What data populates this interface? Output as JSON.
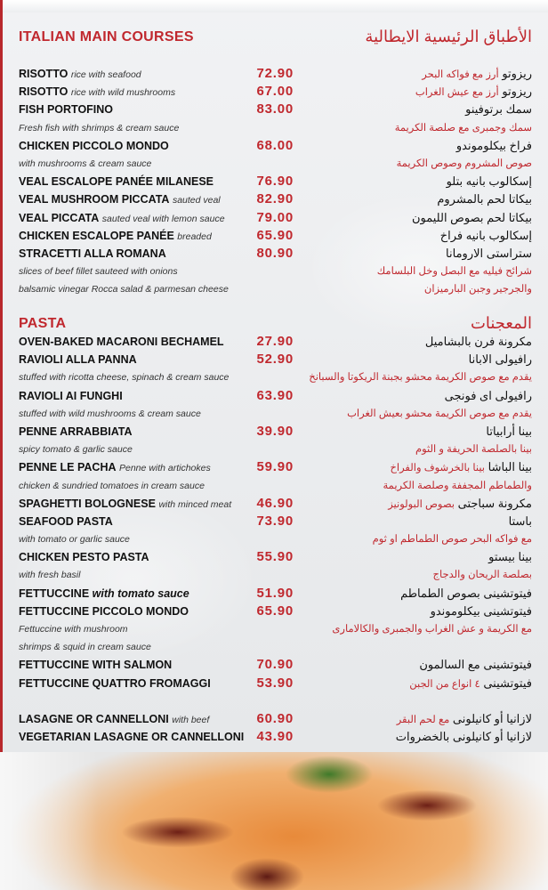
{
  "colors": {
    "accent": "#c0282e",
    "text": "#111111",
    "background": "#eceef0"
  },
  "sections": [
    {
      "title_en": "ITALIAN MAIN COURSES",
      "title_ar": "الأطباق الرئيسية الايطالية",
      "lines": [
        {
          "name": "RISOTTO",
          "desc": "rice with seafood",
          "price": "72.90",
          "ar": "ريزوتو",
          "ar_extra": "أرز مع فواكه البحر"
        },
        {
          "name": "RISOTTO",
          "desc": "rice with wild mushrooms",
          "price": "67.00",
          "ar": "ريزوتو",
          "ar_extra": "أرز مع عيش الغراب"
        },
        {
          "name": "FISH PORTOFINO",
          "price": "83.00",
          "ar": "سمك برتوفينو"
        },
        {
          "note": "Fresh fish with shrimps & cream sauce",
          "ar_note": "سمك وجمبرى مع صلصة الكريمة"
        },
        {
          "name": "CHICKEN PICCOLO MONDO",
          "price": "68.00",
          "ar": "فراخ بيكلوموندو"
        },
        {
          "note": "with mushrooms & cream sauce",
          "ar_note": "صوص المشروم وصوص الكريمة"
        },
        {
          "name": "VEAL ESCALOPE PANÉE MILANESE",
          "price": "76.90",
          "ar": "إسكالوب بانيه بتلو"
        },
        {
          "name": "VEAL MUSHROOM PICCATA",
          "desc": "sauted veal",
          "price": "82.90",
          "ar": "بيكاتا لحم بالمشروم"
        },
        {
          "name": "VEAL PICCATA",
          "desc": "sauted veal with lemon sauce",
          "price": "79.00",
          "ar": "بيكاتا لحم بصوص الليمون"
        },
        {
          "name": "CHICKEN ESCALOPE PANÉE",
          "desc": "breaded",
          "price": "65.90",
          "ar": "إسكالوب بانيه فراخ"
        },
        {
          "name": "STRACETTI ALLA ROMANA",
          "price": "80.90",
          "ar": "ستراستى الارومانا"
        },
        {
          "note": "slices of beef fillet sauteed with onions",
          "ar_note": "شرائح فيليه مع البصل وخل البلسامك"
        },
        {
          "note": "balsamic vinegar Rocca salad & parmesan cheese",
          "ar_note": "والجرجير وجبن البارميزان"
        }
      ]
    },
    {
      "title_en": "PASTA",
      "title_ar": "المعجنات",
      "lines": [
        {
          "name": "OVEN-BAKED MACARONI BECHAMEL",
          "price": "27.90",
          "ar": "مكرونة فرن بالبشاميل"
        },
        {
          "name": "RAVIOLI ALLA PANNA",
          "price": "52.90",
          "ar": "رافيولى الابانا"
        },
        {
          "note": "stuffed with ricotta cheese, spinach & cream sauce",
          "ar_note": "يقدم مع صوص الكريمة محشو بجبنة الريكوتا والسبانخ"
        },
        {
          "name": "RAVIOLI AI FUNGHI",
          "price": "63.90",
          "ar": "رافيولى اى فونجى"
        },
        {
          "note": "stuffed with wild mushrooms & cream sauce",
          "ar_note": "يقدم مع صوص الكريمة محشو بعيش الغراب"
        },
        {
          "name": "PENNE ARRABBIATA",
          "price": "39.90",
          "ar": "بينا أرابياتا"
        },
        {
          "note": "spicy tomato & garlic sauce",
          "ar_note": "بينا بالصلصة الحريفة و الثوم"
        },
        {
          "name": "PENNE LE PACHA",
          "desc": "Penne with artichokes",
          "price": "59.90",
          "ar": "بينا الباشا",
          "ar_extra": "بينا بالخرشوف والفراخ"
        },
        {
          "note": "chicken & sundried tomatoes in cream sauce",
          "ar_note": "والطماطم المجففة وصلصة الكريمة"
        },
        {
          "name": "SPAGHETTI BOLOGNESE",
          "desc": "with minced meat",
          "price": "46.90",
          "ar": "مكرونة سباجتى",
          "ar_extra": "بصوص البولونيز"
        },
        {
          "name": "SEAFOOD PASTA",
          "price": "73.90",
          "ar": "باستا"
        },
        {
          "note": "with tomato or garlic sauce",
          "ar_note": "مع فواكه البحر صوص الطماطم او ثوم"
        },
        {
          "name": "CHICKEN PESTO PASTA",
          "price": "55.90",
          "ar": "بينا بيستو"
        },
        {
          "note": "with fresh basil",
          "ar_note": "بصلصة الريحان والدجاج"
        },
        {
          "name": "FETTUCCINE",
          "desc_big": "with tomato sauce",
          "price": "51.90",
          "ar": "فيتوتشينى بصوص الطماطم"
        },
        {
          "name": "FETTUCCINE PICCOLO MONDO",
          "price": "65.90",
          "ar": "فيتوتشينى بيكلوموندو"
        },
        {
          "note": "Fettuccine with mushroom",
          "ar_note": "مع الكريمة و عش الغراب والجمبرى والكالامارى"
        },
        {
          "note": " shrimps & squid in cream sauce"
        },
        {
          "name": "FETTUCCINE WITH SALMON",
          "price": "70.90",
          "ar": "فيتوتشينى مع السالمون"
        },
        {
          "name": "FETTUCCINE QUATTRO FROMAGGI",
          "price": "53.90",
          "ar": "فيتوتشينى",
          "ar_extra": "٤ انواع من الجبن"
        },
        {
          "blank": true
        },
        {
          "name": "LASAGNE OR CANNELLONI",
          "desc": "with beef",
          "price": "60.90",
          "ar": "لازانيا أو كانيلونى",
          "ar_extra": "مع لحم البقر"
        },
        {
          "name": "VEGETARIAN LASAGNE OR CANNELLONI",
          "price": "43.90",
          "ar": "لازانيا أو كانيلونى بالخضروات"
        }
      ]
    }
  ]
}
